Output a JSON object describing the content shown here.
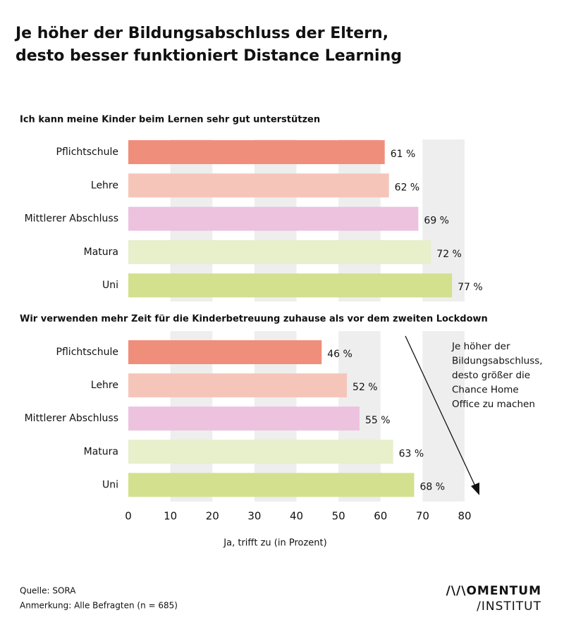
{
  "title": [
    "Je höher der Bildungsabschluss der Eltern,",
    "desto besser funktioniert Distance Learning"
  ],
  "chart_data": [
    {
      "type": "bar",
      "subtitle": "Ich kann meine Kinder beim Lernen sehr gut unterstützen",
      "categories": [
        "Pflichtschule",
        "Lehre",
        "Mittlerer Abschluss",
        "Matura",
        "Uni"
      ],
      "values": [
        61,
        62,
        69,
        72,
        77
      ],
      "value_labels": [
        "61 %",
        "62 %",
        "69 %",
        "72 %",
        "77 %"
      ],
      "colors": [
        "#f08e7c",
        "#f6c5ba",
        "#ecc2df",
        "#e7efcb",
        "#d3e08e"
      ],
      "xlim": [
        0,
        80
      ],
      "xticks": [
        0,
        10,
        20,
        30,
        40,
        50,
        60,
        70,
        80
      ]
    },
    {
      "type": "bar",
      "subtitle": "Wir verwenden mehr Zeit für die Kinderbetreuung zuhause als vor dem zweiten Lockdown",
      "categories": [
        "Pflichtschule",
        "Lehre",
        "Mittlerer Abschluss",
        "Matura",
        "Uni"
      ],
      "values": [
        46,
        52,
        55,
        63,
        68
      ],
      "value_labels": [
        "46 %",
        "52 %",
        "55 %",
        "63 %",
        "68 %"
      ],
      "colors": [
        "#f08e7c",
        "#f6c5ba",
        "#ecc2df",
        "#e7efcb",
        "#d3e08e"
      ],
      "xlim": [
        0,
        80
      ],
      "xticks": [
        0,
        10,
        20,
        30,
        40,
        50,
        60,
        70,
        80
      ],
      "xlabel": "Ja, trifft zu (in Prozent)",
      "annotation": [
        "Je höher der",
        "Bildungsabschluss,",
        "desto größer die",
        "Chance Home",
        "Office zu machen"
      ]
    }
  ],
  "source": "Quelle: SORA",
  "note": "Anmerkung: Alle Befragten (n = 685)",
  "logo": [
    "/\\/\\OMENTUM",
    "/INSTITUT"
  ]
}
